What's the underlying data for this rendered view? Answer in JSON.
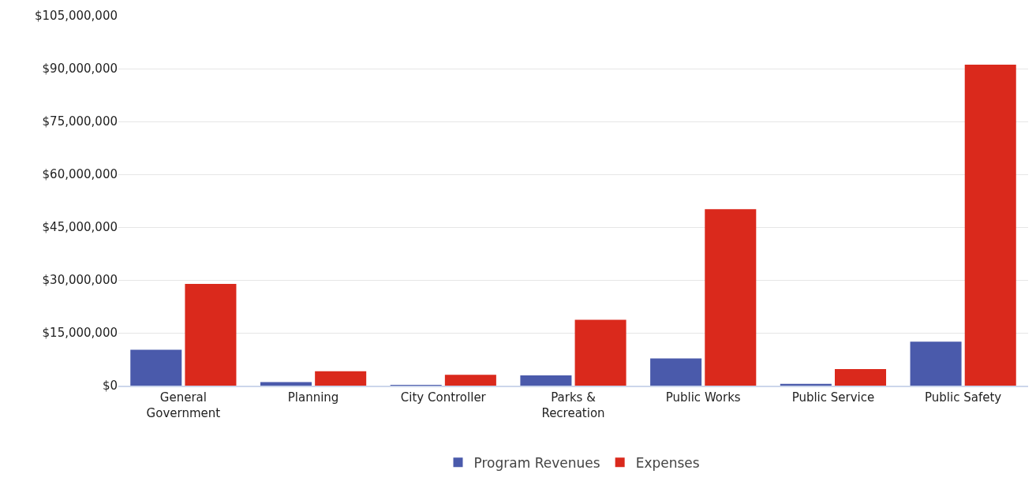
{
  "chart_data": {
    "type": "bar",
    "categories": [
      "General Government",
      "Planning",
      "City Controller",
      "Parks & Recreation",
      "Public Works",
      "Public Service",
      "Public Safety"
    ],
    "series": [
      {
        "name": "Program Revenues",
        "color": "#4a5aab",
        "values": [
          10200000,
          1000000,
          100000,
          2900000,
          7700000,
          500000,
          12500000
        ]
      },
      {
        "name": "Expenses",
        "color": "#da291c",
        "values": [
          28900000,
          4100000,
          3100000,
          18700000,
          50100000,
          4700000,
          91100000
        ]
      }
    ],
    "ylim": [
      0,
      105000000
    ],
    "yticks": [
      {
        "value": 0,
        "label": "$0"
      },
      {
        "value": 15000000,
        "label": "$15,000,000"
      },
      {
        "value": 30000000,
        "label": "$30,000,000"
      },
      {
        "value": 45000000,
        "label": "$45,000,000"
      },
      {
        "value": 60000000,
        "label": "$60,000,000"
      },
      {
        "value": 75000000,
        "label": "$75,000,000"
      },
      {
        "value": 90000000,
        "label": "$90,000,000"
      },
      {
        "value": 105000000,
        "label": "$105,000,000"
      }
    ],
    "grid": "y",
    "legend": "bottom"
  }
}
